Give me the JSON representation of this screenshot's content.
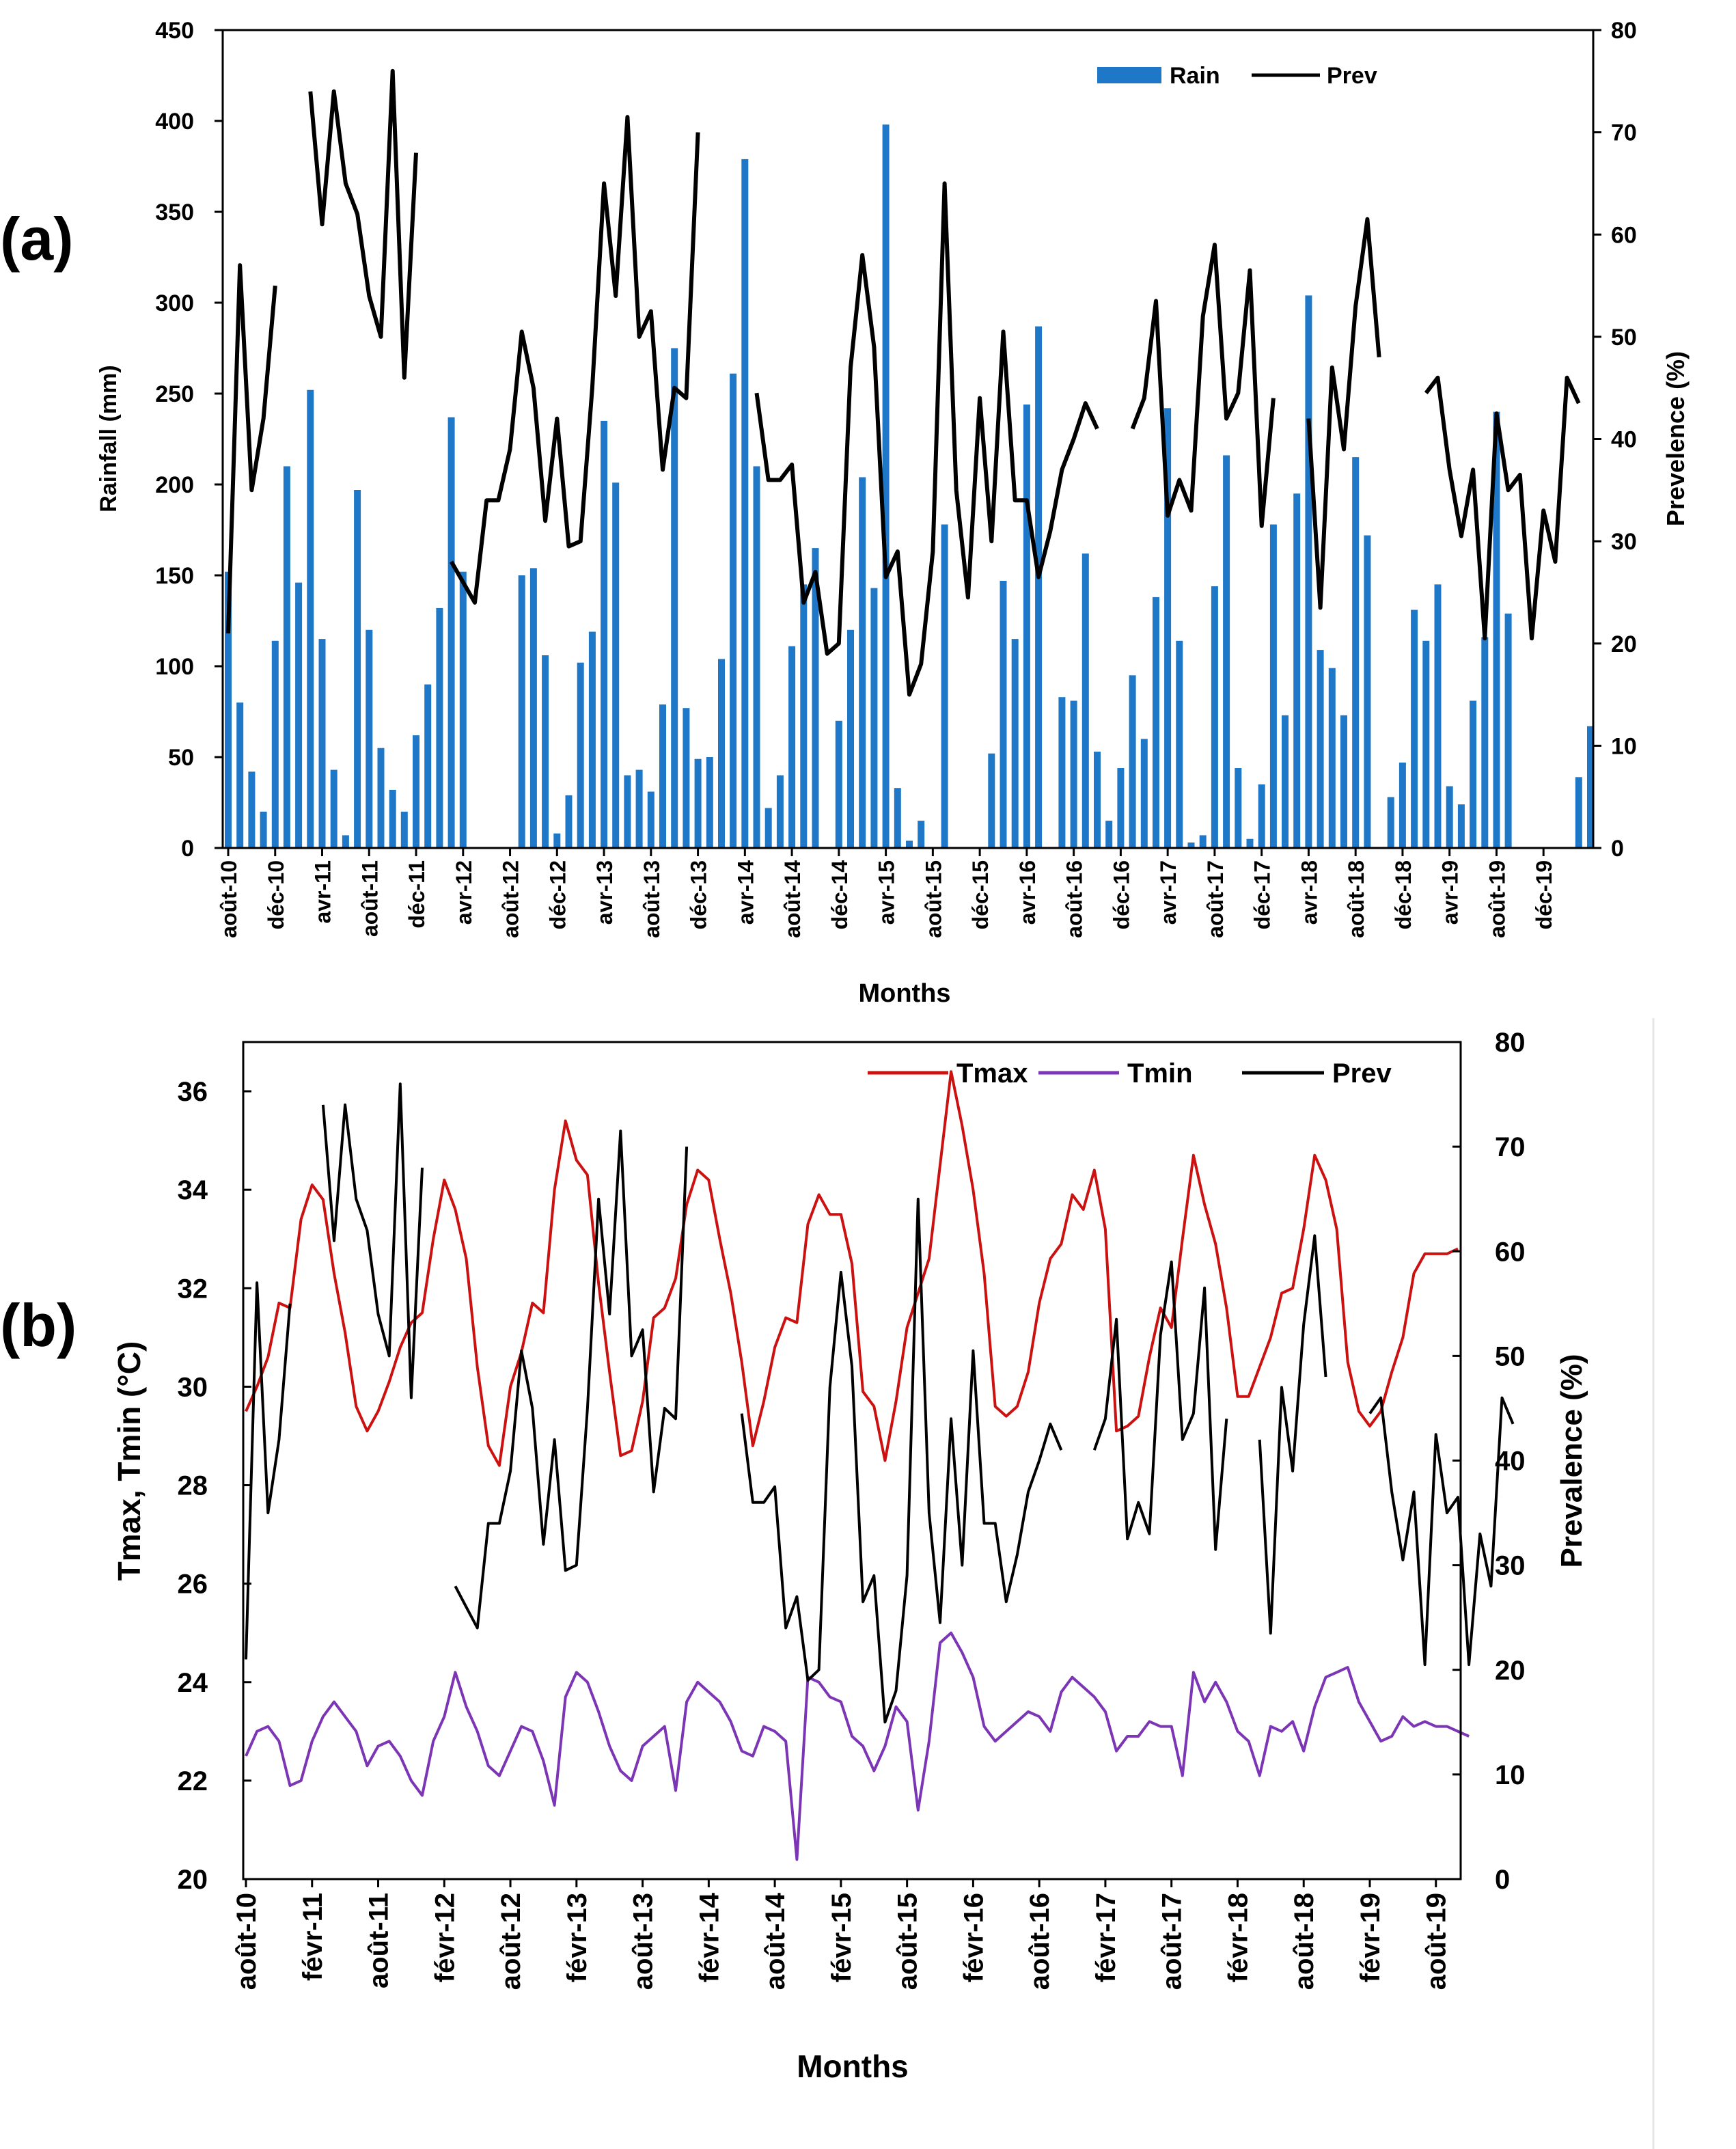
{
  "chart_data": [
    {
      "panel": "(a)",
      "type": "bar+line",
      "title": "",
      "xlabel": "Months",
      "ylabel": "Rainfall (mm)",
      "ylabel_right": "Prevelence (%)",
      "ylim": [
        0,
        450
      ],
      "ylim_right": [
        0,
        80
      ],
      "yticks": [
        "0",
        "50",
        "100",
        "150",
        "200",
        "250",
        "300",
        "350",
        "400",
        "450"
      ],
      "yticks_right": [
        "0",
        "10",
        "20",
        "30",
        "40",
        "50",
        "60",
        "70",
        "80"
      ],
      "xtick_labels": [
        "août-10",
        "déc-10",
        "avr-11",
        "août-11",
        "déc-11",
        "avr-12",
        "août-12",
        "déc-12",
        "avr-13",
        "août-13",
        "déc-13",
        "avr-14",
        "août-14",
        "déc-14",
        "avr-15",
        "août-15",
        "déc-15",
        "avr-16",
        "août-16",
        "déc-16",
        "avr-17",
        "août-17",
        "déc-17",
        "avr-18",
        "août-18",
        "déc-18",
        "avr-19",
        "août-19",
        "déc-19"
      ],
      "legend_position": "top-right",
      "rain_color": "#1f77c8",
      "prev_color": "#000000",
      "series": [
        {
          "name": "Rain",
          "kind": "bar",
          "values": [
            152,
            80,
            42,
            20,
            114,
            210,
            146,
            252,
            115,
            43,
            7,
            197,
            120,
            55,
            32,
            20,
            62,
            90,
            132,
            237,
            152,
            0,
            0,
            0,
            0,
            150,
            154,
            106,
            8,
            29,
            102,
            119,
            235,
            201,
            40,
            43,
            31,
            79,
            275,
            77,
            49,
            50,
            104,
            261,
            379,
            210,
            22,
            40,
            111,
            145,
            165,
            0,
            70,
            120,
            204,
            143,
            398,
            33,
            4,
            15,
            0,
            178,
            0,
            0,
            0,
            52,
            147,
            115,
            244,
            287,
            0,
            83,
            81,
            162,
            53,
            15,
            44,
            95,
            60,
            138,
            242,
            114,
            3,
            7,
            144,
            216,
            44,
            5,
            35,
            178,
            73,
            195,
            304,
            109,
            99,
            73,
            215,
            172,
            0,
            28,
            47,
            131,
            114,
            145,
            34,
            24,
            81,
            116,
            240,
            129,
            0,
            0,
            0,
            0,
            0,
            39,
            67
          ]
        },
        {
          "name": "Prev",
          "kind": "line",
          "values": [
            21,
            57,
            35,
            42,
            55,
            null,
            null,
            74,
            61,
            74,
            65,
            62,
            54,
            50,
            76,
            46,
            68,
            null,
            null,
            28,
            26,
            24,
            34,
            34,
            39,
            50.5,
            45,
            32,
            42,
            29.5,
            30,
            45,
            65,
            54,
            71.5,
            50,
            52.5,
            37,
            45,
            44,
            70,
            null,
            null,
            null,
            null,
            44.5,
            36,
            36,
            37.5,
            24,
            27,
            19,
            20,
            47,
            58,
            49,
            26.5,
            29,
            15,
            18,
            29,
            65,
            35,
            24.5,
            44,
            30,
            50.5,
            34,
            34,
            26.5,
            31,
            37,
            40,
            43.5,
            41,
            null,
            null,
            41,
            44,
            53.5,
            32.5,
            36,
            33,
            52,
            59,
            42,
            44.5,
            56.5,
            31.5,
            44,
            null,
            null,
            42,
            23.5,
            47,
            39,
            53,
            61.5,
            48,
            null,
            null,
            null,
            44.5,
            46,
            37,
            30.5,
            37,
            20.5,
            42.5,
            35,
            36.5,
            20.5,
            33,
            28,
            46,
            43.5
          ]
        }
      ]
    },
    {
      "panel": "(b)",
      "type": "line",
      "title": "",
      "xlabel": "Months",
      "ylabel": "Tmax, Tmin (°C)",
      "ylabel_right": "Prevalence (%)",
      "ylim": [
        20,
        37
      ],
      "ylim_right": [
        0,
        80
      ],
      "yticks": [
        "20",
        "22",
        "24",
        "26",
        "28",
        "30",
        "32",
        "34",
        "36"
      ],
      "yticks_right": [
        "0",
        "10",
        "20",
        "30",
        "40",
        "50",
        "60",
        "70",
        "80"
      ],
      "xtick_labels": [
        "août-10",
        "févr-11",
        "août-11",
        "févr-12",
        "août-12",
        "févr-13",
        "août-13",
        "févr-14",
        "août-14",
        "févr-15",
        "août-15",
        "févr-16",
        "août-16",
        "févr-17",
        "août-17",
        "févr-18",
        "août-18",
        "févr-19",
        "août-19"
      ],
      "legend_position": "top-right",
      "tmax_color": "#cc1111",
      "tmin_color": "#7b35b5",
      "prev_color": "#000000",
      "series": [
        {
          "name": "Tmax",
          "values": [
            29.5,
            30,
            30.6,
            31.7,
            31.6,
            33.4,
            34.1,
            33.8,
            32.3,
            31.1,
            29.6,
            29.1,
            29.5,
            30.1,
            30.8,
            31.3,
            31.5,
            33,
            34.2,
            33.6,
            32.6,
            30.4,
            28.8,
            28.4,
            30,
            30.7,
            31.7,
            31.5,
            34,
            35.4,
            34.6,
            34.3,
            32.1,
            30.3,
            28.6,
            28.7,
            29.7,
            31.4,
            31.6,
            32.2,
            33.7,
            34.4,
            34.2,
            33,
            31.9,
            30.5,
            28.8,
            29.7,
            30.8,
            31.4,
            31.3,
            33.3,
            33.9,
            33.5,
            33.5,
            32.5,
            29.9,
            29.6,
            28.5,
            29.7,
            31.2,
            31.9,
            32.6,
            34.5,
            36.4,
            35.3,
            34,
            32.3,
            29.6,
            29.4,
            29.6,
            30.3,
            31.7,
            32.6,
            32.9,
            33.9,
            33.6,
            34.4,
            33.2,
            29.1,
            29.2,
            29.4,
            30.6,
            31.6,
            31.2,
            33,
            34.7,
            33.7,
            32.9,
            31.6,
            29.8,
            29.8,
            30.4,
            31,
            31.9,
            32,
            33.2,
            34.7,
            34.2,
            33.2,
            30.5,
            29.5,
            29.2,
            29.5,
            30.3,
            31,
            32.3,
            32.7,
            32.7,
            32.7,
            32.8
          ]
        },
        {
          "name": "Tmin",
          "values": [
            22.5,
            23,
            23.1,
            22.8,
            21.9,
            22,
            22.8,
            23.3,
            23.6,
            23.3,
            23,
            22.3,
            22.7,
            22.8,
            22.5,
            22,
            21.7,
            22.8,
            23.3,
            24.2,
            23.5,
            23,
            22.3,
            22.1,
            22.6,
            23.1,
            23,
            22.4,
            21.5,
            23.7,
            24.2,
            24,
            23.4,
            22.7,
            22.2,
            22,
            22.7,
            22.9,
            23.1,
            21.8,
            23.6,
            24,
            23.8,
            23.6,
            23.2,
            22.6,
            22.5,
            23.1,
            23,
            22.8,
            20.4,
            24.1,
            24,
            23.7,
            23.6,
            22.9,
            22.7,
            22.2,
            22.7,
            23.5,
            23.2,
            21.4,
            22.8,
            24.8,
            25,
            24.6,
            24.1,
            23.1,
            22.8,
            23,
            23.2,
            23.4,
            23.3,
            23,
            23.8,
            24.1,
            23.9,
            23.7,
            23.4,
            22.6,
            22.9,
            22.9,
            23.2,
            23.1,
            23.1,
            22.1,
            24.2,
            23.6,
            24,
            23.6,
            23,
            22.8,
            22.1,
            23.1,
            23,
            23.2,
            22.6,
            23.5,
            24.1,
            24.2,
            24.3,
            23.6,
            23.2,
            22.8,
            22.9,
            23.3,
            23.1,
            23.2,
            23.1,
            23.1,
            23,
            22.9
          ]
        },
        {
          "name": "Prev",
          "values": [
            21,
            57,
            35,
            42,
            55,
            null,
            null,
            74,
            61,
            74,
            65,
            62,
            54,
            50,
            76,
            46,
            68,
            null,
            null,
            28,
            26,
            24,
            34,
            34,
            39,
            50.5,
            45,
            32,
            42,
            29.5,
            30,
            45,
            65,
            54,
            71.5,
            50,
            52.5,
            37,
            45,
            44,
            70,
            null,
            null,
            null,
            null,
            44.5,
            36,
            36,
            37.5,
            24,
            27,
            19,
            20,
            47,
            58,
            49,
            26.5,
            29,
            15,
            18,
            29,
            65,
            35,
            24.5,
            44,
            30,
            50.5,
            34,
            34,
            26.5,
            31,
            37,
            40,
            43.5,
            41,
            null,
            null,
            41,
            44,
            53.5,
            32.5,
            36,
            33,
            52,
            59,
            42,
            44.5,
            56.5,
            31.5,
            44,
            null,
            null,
            42,
            23.5,
            47,
            39,
            53,
            61.5,
            48,
            null,
            null,
            null,
            44.5,
            46,
            37,
            30.5,
            37,
            20.5,
            42.5,
            35,
            36.5,
            20.5,
            33,
            28,
            46,
            43.5
          ]
        }
      ]
    }
  ]
}
